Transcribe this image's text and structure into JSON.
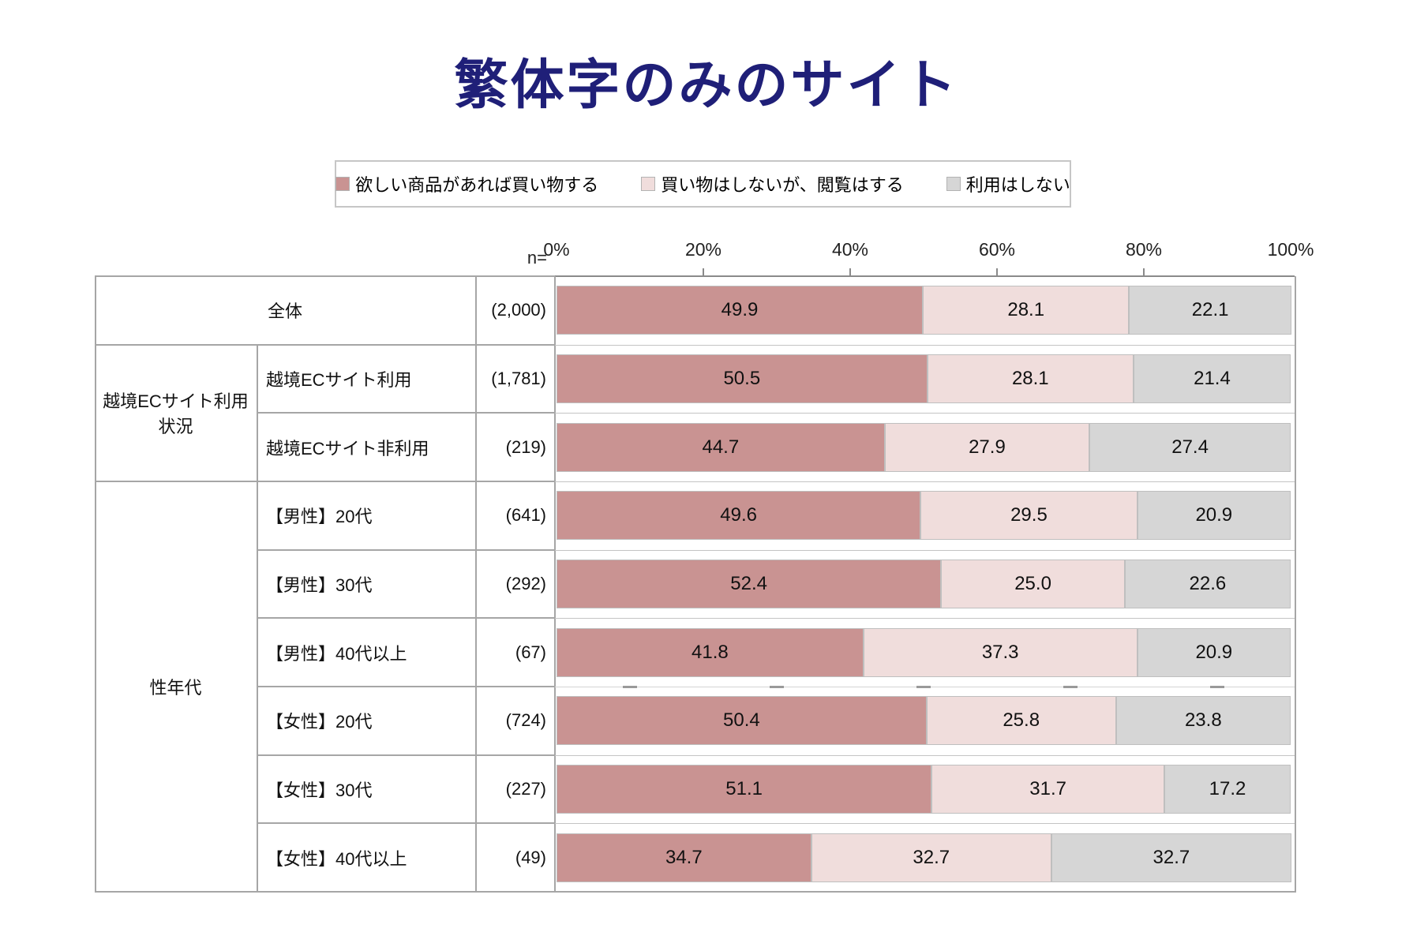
{
  "title": "繁体字のみのサイト",
  "legend": {
    "items": [
      {
        "label": "欲しい商品があれば買い物する",
        "color": "#c99392"
      },
      {
        "label": "買い物はしないが、閲覧はする",
        "color": "#f0dddc"
      },
      {
        "label": "利用はしない",
        "color": "#d6d6d6"
      }
    ]
  },
  "axis": {
    "n_label": "n=",
    "tick_labels": [
      "0%",
      "20%",
      "40%",
      "60%",
      "80%",
      "100%"
    ]
  },
  "chart_data": {
    "type": "bar",
    "stacked": true,
    "orientation": "horizontal",
    "title": "繁体字のみのサイト",
    "xlabel": "",
    "ylabel": "",
    "xlim": [
      0,
      100
    ],
    "x_ticks": [
      0,
      20,
      40,
      60,
      80,
      100
    ],
    "grid": false,
    "legend_position": "top",
    "series_names": [
      "欲しい商品があれば買い物する",
      "買い物はしないが、閲覧はする",
      "利用はしない"
    ],
    "colors": [
      "#c99392",
      "#f0dddc",
      "#d6d6d6"
    ],
    "groups": [
      {
        "group_label": "",
        "rows": [
          {
            "label": "全体",
            "n": "(2,000)",
            "values": [
              49.9,
              28.1,
              22.1
            ]
          }
        ]
      },
      {
        "group_label": "越境ECサイト利用状況",
        "rows": [
          {
            "label": "越境ECサイト利用",
            "n": "(1,781)",
            "values": [
              50.5,
              28.1,
              21.4
            ]
          },
          {
            "label": "越境ECサイト非利用",
            "n": "(219)",
            "values": [
              44.7,
              27.9,
              27.4
            ]
          }
        ]
      },
      {
        "group_label": "性年代",
        "rows": [
          {
            "label": "【男性】20代",
            "n": "(641)",
            "values": [
              49.6,
              29.5,
              20.9
            ]
          },
          {
            "label": "【男性】30代",
            "n": "(292)",
            "values": [
              52.4,
              25.0,
              22.6
            ]
          },
          {
            "label": "【男性】40代以上",
            "n": "(67)",
            "values": [
              41.8,
              37.3,
              20.9
            ]
          },
          {
            "label": "【女性】20代",
            "n": "(724)",
            "values": [
              50.4,
              25.8,
              23.8
            ]
          },
          {
            "label": "【女性】30代",
            "n": "(227)",
            "values": [
              51.1,
              31.7,
              17.2
            ]
          },
          {
            "label": "【女性】40代以上",
            "n": "(49)",
            "values": [
              34.7,
              32.7,
              32.7
            ]
          }
        ]
      }
    ],
    "dotted_separator_after_row_index": 6
  }
}
